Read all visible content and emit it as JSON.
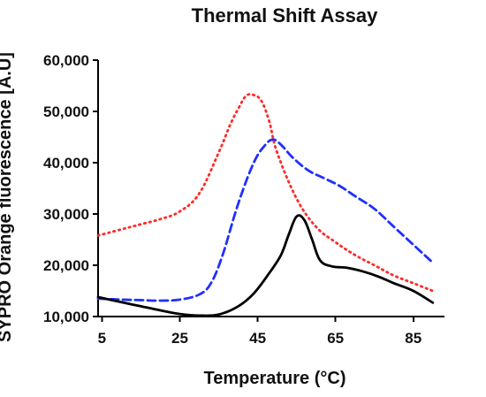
{
  "chart_data": {
    "type": "line",
    "title": "Thermal Shift Assay",
    "xlabel": "Temperature (°C)",
    "ylabel": "SYPRO Orange fluorescence [A.U]",
    "xlim": [
      4,
      93
    ],
    "ylim": [
      10000,
      60000
    ],
    "x_ticks": [
      5,
      25,
      45,
      65,
      85
    ],
    "x_tick_labels": [
      "5",
      "25",
      "45",
      "65",
      "85"
    ],
    "y_ticks": [
      10000,
      20000,
      30000,
      40000,
      50000,
      60000
    ],
    "y_tick_labels": [
      "10,000",
      "20,000",
      "30,000",
      "40,000",
      "50,000",
      "60,000"
    ],
    "grid": false,
    "legend": false,
    "series": [
      {
        "color": "#ff2a2a",
        "style": "dotted",
        "x": [
          4,
          10,
          15,
          20,
          25,
          30,
          35,
          38,
          40,
          42,
          44,
          46,
          48,
          50,
          55,
          60,
          65,
          70,
          75,
          80,
          85,
          90
        ],
        "y": [
          25800,
          27000,
          28000,
          29000,
          30500,
          34000,
          42000,
          47500,
          50500,
          53000,
          53200,
          52000,
          48000,
          42000,
          33000,
          27500,
          24500,
          22000,
          20000,
          18000,
          16500,
          15000
        ]
      },
      {
        "color": "#1f2fff",
        "style": "dashed",
        "x": [
          4,
          10,
          15,
          20,
          25,
          30,
          33,
          36,
          40,
          44,
          47,
          49,
          51,
          54,
          58,
          62,
          66,
          70,
          75,
          80,
          85,
          90
        ],
        "y": [
          13500,
          13300,
          13200,
          13100,
          13300,
          14300,
          16500,
          22000,
          32000,
          40000,
          43500,
          44500,
          43500,
          41000,
          38500,
          37000,
          35500,
          33500,
          31000,
          27500,
          24000,
          20500
        ]
      },
      {
        "color": "#000000",
        "style": "solid",
        "x": [
          4,
          10,
          15,
          20,
          25,
          30,
          35,
          40,
          44,
          48,
          51,
          53,
          55,
          57,
          59,
          61,
          64,
          68,
          72,
          76,
          80,
          85,
          90
        ],
        "y": [
          13800,
          12800,
          12000,
          11200,
          10500,
          10200,
          10400,
          12000,
          14500,
          18500,
          22000,
          26000,
          29500,
          28800,
          25000,
          21000,
          19800,
          19500,
          18800,
          17800,
          16500,
          15000,
          12700
        ]
      }
    ]
  }
}
